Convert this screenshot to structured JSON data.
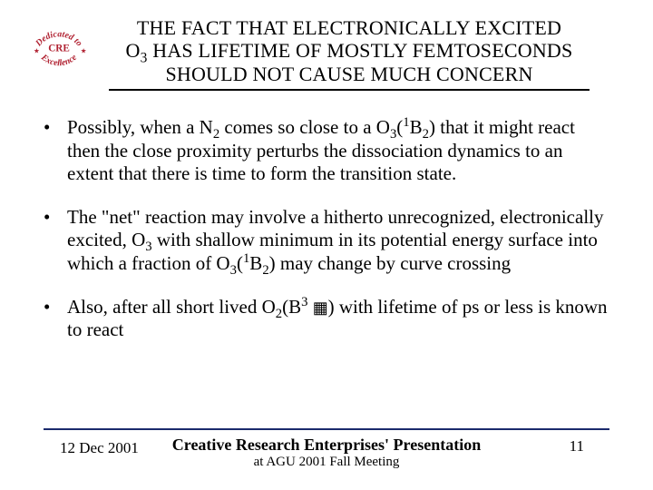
{
  "logo": {
    "top_text": "Dedicated to",
    "center_text": "CRE",
    "bottom_text": "Excellence",
    "text_color": "#b02030",
    "star_color": "#b02030"
  },
  "title": {
    "line1": "THE FACT THAT ELECTRONICALLY EXCITED",
    "line2_pre": "O",
    "line2_sub": "3",
    "line2_post": " HAS LIFETIME OF MOSTLY FEMTOSECONDS",
    "line3": "SHOULD NOT CAUSE MUCH CONCERN"
  },
  "bullets": [
    {
      "html": "Possibly, when a N<sub>2</sub> comes so close to a O<sub>3</sub>(<sup>1</sup>B<sub>2</sub>) that it might react then the close proximity perturbs the dissociation dynamics to an extent that there is time to form the transition state."
    },
    {
      "html": "The \"net\" reaction may involve a hitherto unrecognized, electronically excited, O<sub>3</sub> with shallow minimum in its potential energy surface into which a fraction of O<sub>3</sub>(<sup>1</sup>B<sub>2</sub>) may change by curve crossing"
    },
    {
      "html": "Also, after all short lived O<sub>2</sub>(B<sup>3</sup> <span class=\"glyph-box\">&#9638;</span>) with lifetime of ps or less is known to react"
    }
  ],
  "footer": {
    "date": "12 Dec 2001",
    "title": "Creative Research Enterprises' Presentation",
    "subtitle": "at AGU 2001 Fall Meeting",
    "page": "11",
    "rule_color": "#1a2a6c"
  },
  "style": {
    "background": "#ffffff",
    "text_color": "#000000",
    "body_fontsize": 21,
    "title_fontsize": 22
  }
}
